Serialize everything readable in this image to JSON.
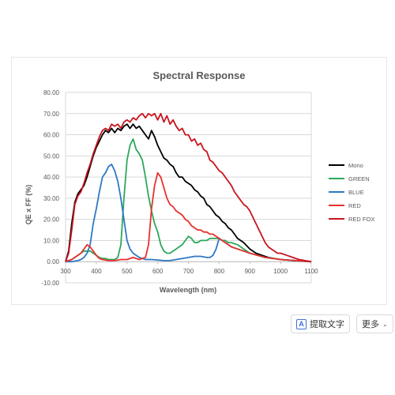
{
  "chart_data": {
    "type": "line",
    "title": "Spectral Response",
    "xlabel": "Wavelength (nm)",
    "ylabel": "QE x FF (%)",
    "xlim": [
      300,
      1100
    ],
    "ylim": [
      -10,
      80
    ],
    "xticks": [
      300,
      400,
      500,
      600,
      700,
      800,
      900,
      1000,
      1100
    ],
    "yticks": [
      "-10.00",
      "0.00",
      "10.00",
      "20.00",
      "30.00",
      "40.00",
      "50.00",
      "60.00",
      "70.00",
      "80.00"
    ],
    "grid": "horizontal",
    "legend_position": "right",
    "series": [
      {
        "name": "Mono",
        "color": "#000000",
        "x": [
          300,
          310,
          320,
          330,
          340,
          350,
          360,
          370,
          380,
          390,
          400,
          410,
          420,
          430,
          440,
          450,
          460,
          470,
          480,
          490,
          500,
          510,
          520,
          530,
          540,
          550,
          560,
          570,
          580,
          590,
          600,
          610,
          620,
          630,
          640,
          650,
          660,
          670,
          680,
          690,
          700,
          710,
          720,
          730,
          740,
          750,
          760,
          770,
          780,
          790,
          800,
          810,
          820,
          830,
          840,
          850,
          860,
          870,
          880,
          900,
          920,
          940,
          960,
          980,
          1000,
          1020,
          1040,
          1060,
          1080,
          1100
        ],
        "y": [
          0,
          5,
          18,
          28,
          32,
          34,
          36,
          40,
          45,
          50,
          54,
          57,
          60,
          62,
          61,
          63,
          61,
          63,
          62,
          64,
          65,
          63,
          65,
          63,
          64,
          62,
          60,
          58,
          62,
          59,
          55,
          52,
          49,
          48,
          46,
          45,
          42,
          40,
          40,
          38,
          37,
          36,
          34,
          33,
          31,
          30,
          27,
          26,
          24,
          22,
          21,
          19,
          18,
          16,
          15,
          13,
          11,
          10,
          9,
          6,
          4,
          3,
          2,
          1.5,
          1,
          0.8,
          0.5,
          0.4,
          0.2,
          0
        ]
      },
      {
        "name": "GREEN",
        "color": "#2ca85a",
        "x": [
          300,
          320,
          340,
          350,
          360,
          370,
          380,
          390,
          400,
          410,
          420,
          430,
          440,
          450,
          460,
          470,
          480,
          490,
          500,
          510,
          520,
          530,
          540,
          550,
          560,
          570,
          580,
          590,
          600,
          610,
          620,
          630,
          640,
          650,
          660,
          670,
          680,
          690,
          700,
          710,
          720,
          730,
          740,
          750,
          760,
          770,
          780,
          790,
          800,
          810,
          820,
          830,
          840,
          860,
          880,
          900,
          950,
          1000,
          1050,
          1100
        ],
        "y": [
          0,
          1,
          3,
          4,
          5,
          5,
          5,
          4,
          3,
          2,
          1.5,
          1.5,
          1,
          1,
          1,
          2,
          8,
          30,
          48,
          55,
          58,
          53,
          51,
          48,
          40,
          31,
          24,
          18,
          14,
          8,
          5,
          4,
          4,
          5,
          6,
          7,
          8,
          10,
          12,
          11,
          9,
          9,
          10,
          10,
          10,
          11,
          11,
          11,
          11,
          10,
          10,
          9,
          9,
          8,
          6,
          4,
          2,
          1,
          0.5,
          0
        ]
      },
      {
        "name": "BLUE",
        "color": "#2e78c4",
        "x": [
          300,
          320,
          340,
          350,
          360,
          370,
          380,
          390,
          400,
          410,
          420,
          430,
          440,
          450,
          460,
          470,
          480,
          490,
          500,
          510,
          520,
          530,
          540,
          550,
          560,
          580,
          600,
          620,
          640,
          660,
          680,
          700,
          720,
          740,
          760,
          770,
          780,
          790,
          800,
          810,
          820,
          830,
          840,
          860,
          880,
          900,
          950,
          1000,
          1050,
          1100
        ],
        "y": [
          0,
          0,
          0.5,
          1,
          2,
          4,
          8,
          18,
          25,
          33,
          40,
          42,
          45,
          46,
          43,
          38,
          30,
          20,
          10,
          6,
          4,
          3,
          2,
          1.5,
          1,
          1,
          0.8,
          0.5,
          0.5,
          1,
          1.5,
          2,
          2.5,
          2.5,
          2,
          2,
          3,
          6,
          11,
          10,
          9,
          8,
          7,
          6,
          5,
          4,
          2,
          1,
          0.5,
          0
        ]
      },
      {
        "name": "RED",
        "color": "#e8312d",
        "x": [
          300,
          320,
          340,
          350,
          360,
          370,
          380,
          390,
          400,
          410,
          420,
          440,
          460,
          480,
          500,
          520,
          540,
          560,
          570,
          580,
          590,
          600,
          610,
          620,
          630,
          640,
          650,
          660,
          670,
          680,
          690,
          700,
          710,
          720,
          730,
          740,
          750,
          760,
          770,
          780,
          790,
          800,
          810,
          820,
          830,
          840,
          860,
          880,
          900,
          950,
          1000,
          1050,
          1100
        ],
        "y": [
          0,
          1,
          3,
          4,
          6,
          8,
          7,
          5,
          3,
          1.5,
          1,
          0.5,
          0.5,
          1,
          1,
          2,
          1,
          2,
          8,
          25,
          36,
          42,
          40,
          35,
          30,
          27,
          26,
          24,
          23,
          22,
          20,
          19,
          17,
          16,
          15,
          15,
          14,
          14,
          13,
          13,
          12,
          11,
          10,
          9,
          8,
          7,
          6,
          5,
          4,
          2,
          1,
          0.5,
          0
        ]
      },
      {
        "name": "RED FOX",
        "color": "#c8141e",
        "x": [
          300,
          310,
          320,
          330,
          340,
          350,
          360,
          370,
          380,
          390,
          400,
          410,
          420,
          430,
          440,
          450,
          460,
          470,
          480,
          490,
          500,
          510,
          520,
          530,
          540,
          550,
          560,
          570,
          580,
          590,
          600,
          610,
          620,
          630,
          640,
          650,
          660,
          670,
          680,
          690,
          700,
          710,
          720,
          730,
          740,
          750,
          760,
          770,
          780,
          790,
          800,
          810,
          820,
          830,
          840,
          850,
          860,
          870,
          880,
          890,
          900,
          910,
          920,
          930,
          940,
          950,
          960,
          970,
          980,
          990,
          1000,
          1020,
          1040,
          1060,
          1080,
          1100
        ],
        "y": [
          0,
          4,
          15,
          27,
          31,
          33,
          37,
          42,
          46,
          51,
          55,
          59,
          62,
          63,
          62,
          65,
          64,
          65,
          63,
          66,
          67,
          66,
          68,
          67,
          69,
          70,
          68,
          70,
          69,
          70,
          67,
          70,
          66,
          69,
          65,
          67,
          64,
          62,
          63,
          60,
          60,
          57,
          58,
          55,
          56,
          53,
          52,
          48,
          47,
          45,
          43,
          42,
          40,
          38,
          36,
          33,
          31,
          29,
          27,
          26,
          24,
          21,
          18,
          15,
          12,
          9,
          7,
          6,
          5,
          4,
          4,
          3,
          2,
          1,
          0.5,
          0
        ]
      }
    ]
  },
  "toolbar": {
    "ocr_icon": "A",
    "ocr_label": "提取文字",
    "more_label": "更多",
    "more_chevron": "⌄"
  },
  "colors": {
    "title": "#595959",
    "grid": "#d9d9d9"
  }
}
